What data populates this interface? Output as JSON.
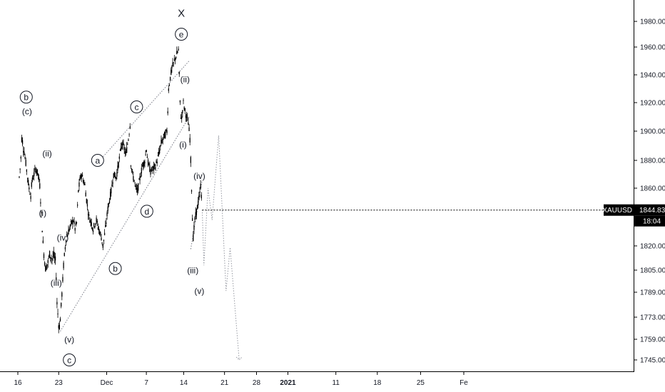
{
  "symbol": "XAUUSD",
  "price_label": "1844.83",
  "countdown_label": "18:04",
  "colors": {
    "background": "#ffffff",
    "candle": "#000000",
    "trendline": "#787b86",
    "projection": "#9598a1",
    "axis_text": "#131722",
    "price_badge": "#000000",
    "price_badge_text": "#ffffff"
  },
  "chart_data": {
    "type": "line",
    "title": "",
    "xlabel": "",
    "ylabel": "",
    "ylim": [
      1735,
      1995
    ],
    "grid": false,
    "x_tick_labels": [
      "16",
      "23",
      "Dec",
      "7",
      "14",
      "21",
      "28",
      "2021",
      "11",
      "18",
      "25",
      "Fe"
    ],
    "y_tick_labels": [
      "1980.00",
      "1960.00",
      "1940.00",
      "1920.00",
      "1900.00",
      "1880.00",
      "1860.00",
      "1820.00",
      "1805.00",
      "1789.00",
      "1773.00",
      "1759.00",
      "1745.00"
    ],
    "price_path": [
      [
        0,
        1868
      ],
      [
        0.05,
        1876
      ],
      [
        0.1,
        1874
      ],
      [
        0.2,
        1882
      ],
      [
        0.25,
        1888
      ],
      [
        0.3,
        1895
      ],
      [
        0.35,
        1890
      ],
      [
        0.4,
        1893
      ],
      [
        0.5,
        1888
      ],
      [
        0.6,
        1886
      ],
      [
        0.8,
        1878
      ],
      [
        1.0,
        1868
      ],
      [
        1.2,
        1860
      ],
      [
        1.4,
        1855
      ],
      [
        1.5,
        1862
      ],
      [
        1.6,
        1866
      ],
      [
        1.8,
        1870
      ],
      [
        2.0,
        1874
      ],
      [
        2.3,
        1870
      ],
      [
        2.5,
        1862
      ],
      [
        2.7,
        1842
      ],
      [
        2.9,
        1822
      ],
      [
        3.0,
        1815
      ],
      [
        3.2,
        1806
      ],
      [
        3.5,
        1810
      ],
      [
        3.7,
        1815
      ],
      [
        4.0,
        1812
      ],
      [
        4.2,
        1814
      ],
      [
        4.4,
        1811
      ],
      [
        4.5,
        1800
      ],
      [
        4.6,
        1782
      ],
      [
        4.75,
        1772
      ],
      [
        4.85,
        1765
      ],
      [
        5.0,
        1772
      ],
      [
        5.2,
        1788
      ],
      [
        5.4,
        1808
      ],
      [
        5.7,
        1825
      ],
      [
        6.0,
        1830
      ],
      [
        6.3,
        1835
      ],
      [
        6.6,
        1838
      ],
      [
        6.8,
        1832
      ],
      [
        7.0,
        1836
      ],
      [
        7.2,
        1858
      ],
      [
        7.4,
        1866
      ],
      [
        7.6,
        1870
      ],
      [
        8.0,
        1862
      ],
      [
        8.2,
        1852
      ],
      [
        8.5,
        1840
      ],
      [
        8.8,
        1836
      ],
      [
        9.0,
        1832
      ],
      [
        9.4,
        1838
      ],
      [
        9.6,
        1833
      ],
      [
        9.8,
        1830
      ],
      [
        10.0,
        1826
      ],
      [
        10.2,
        1820
      ],
      [
        10.5,
        1832
      ],
      [
        10.8,
        1846
      ],
      [
        11.2,
        1858
      ],
      [
        11.5,
        1870
      ],
      [
        11.8,
        1868
      ],
      [
        12.0,
        1874
      ],
      [
        12.3,
        1885
      ],
      [
        12.5,
        1892
      ],
      [
        12.8,
        1888
      ],
      [
        13.0,
        1884
      ],
      [
        13.3,
        1895
      ],
      [
        13.5,
        1904
      ],
      [
        13.6,
        1878
      ],
      [
        13.8,
        1870
      ],
      [
        14.0,
        1866
      ],
      [
        14.2,
        1860
      ],
      [
        14.4,
        1858
      ],
      [
        14.6,
        1864
      ],
      [
        14.8,
        1870
      ],
      [
        15.0,
        1876
      ],
      [
        15.3,
        1880
      ],
      [
        15.5,
        1888
      ],
      [
        15.7,
        1878
      ],
      [
        16.0,
        1872
      ],
      [
        16.3,
        1874
      ],
      [
        16.6,
        1876
      ],
      [
        17.0,
        1884
      ],
      [
        17.3,
        1892
      ],
      [
        17.6,
        1896
      ],
      [
        18.0,
        1900
      ],
      [
        18.1,
        1915
      ],
      [
        18.2,
        1930
      ],
      [
        18.4,
        1938
      ],
      [
        18.6,
        1945
      ],
      [
        18.8,
        1948
      ],
      [
        19.0,
        1952
      ],
      [
        19.2,
        1955
      ],
      [
        19.4,
        1958
      ],
      [
        19.5,
        1940
      ],
      [
        19.6,
        1920
      ],
      [
        19.75,
        1906
      ],
      [
        19.9,
        1915
      ],
      [
        20.0,
        1920
      ],
      [
        20.2,
        1914
      ],
      [
        20.4,
        1910
      ],
      [
        20.6,
        1906
      ],
      [
        20.8,
        1895
      ],
      [
        20.9,
        1880
      ],
      [
        21.0,
        1860
      ],
      [
        21.1,
        1840
      ],
      [
        21.2,
        1826
      ],
      [
        21.4,
        1838
      ],
      [
        21.6,
        1844
      ],
      [
        21.8,
        1850
      ],
      [
        22.0,
        1856
      ],
      [
        22.1,
        1862
      ],
      [
        22.2,
        1855
      ],
      [
        22.3,
        1845
      ]
    ],
    "trendlines": [
      {
        "from": [
          9.2,
          1876
        ],
        "to": [
          20.7,
          1950
        ]
      },
      {
        "from": [
          5.0,
          1764
        ],
        "to": [
          20.7,
          1910
        ]
      },
      {
        "from": [
          20.9,
          1818
        ],
        "to": [
          22.3,
          1866
        ]
      }
    ],
    "projection": [
      [
        22.3,
        1845
      ],
      [
        22.5,
        1808
      ],
      [
        23.0,
        1860
      ],
      [
        23.5,
        1838
      ],
      [
        24.3,
        1897
      ],
      [
        25.2,
        1790
      ],
      [
        25.7,
        1819
      ],
      [
        26.8,
        1745
      ]
    ],
    "wave_labels": [
      {
        "text": "b",
        "circled": true,
        "x": 0.85,
        "y": 1924
      },
      {
        "text": "(c)",
        "circled": false,
        "x": 0.95,
        "y": 1914
      },
      {
        "text": "(ii)",
        "circled": false,
        "x": 3.4,
        "y": 1885
      },
      {
        "text": "(i)",
        "circled": false,
        "x": 2.85,
        "y": 1843
      },
      {
        "text": "(iv)",
        "circled": false,
        "x": 5.3,
        "y": 1826
      },
      {
        "text": "(iii)",
        "circled": false,
        "x": 4.5,
        "y": 1796
      },
      {
        "text": "(v)",
        "circled": false,
        "x": 6.1,
        "y": 1759
      },
      {
        "text": "c",
        "circled": true,
        "x": 6.1,
        "y": 1745
      },
      {
        "text": "a",
        "circled": true,
        "x": 9.55,
        "y": 1880
      },
      {
        "text": "b",
        "circled": true,
        "x": 11.7,
        "y": 1806
      },
      {
        "text": "c",
        "circled": true,
        "x": 14.3,
        "y": 1917
      },
      {
        "text": "d",
        "circled": true,
        "x": 15.55,
        "y": 1844
      },
      {
        "text": "X",
        "circled": false,
        "x": 19.75,
        "y": 1986
      },
      {
        "text": "e",
        "circled": true,
        "x": 19.75,
        "y": 1970
      },
      {
        "text": "(ii)",
        "circled": false,
        "x": 20.2,
        "y": 1937
      },
      {
        "text": "(i)",
        "circled": false,
        "x": 19.95,
        "y": 1891
      },
      {
        "text": "(iv)",
        "circled": false,
        "x": 21.95,
        "y": 1869
      },
      {
        "text": "(iii)",
        "circled": false,
        "x": 21.15,
        "y": 1805
      },
      {
        "text": "(v)",
        "circled": false,
        "x": 21.95,
        "y": 1790
      }
    ]
  }
}
